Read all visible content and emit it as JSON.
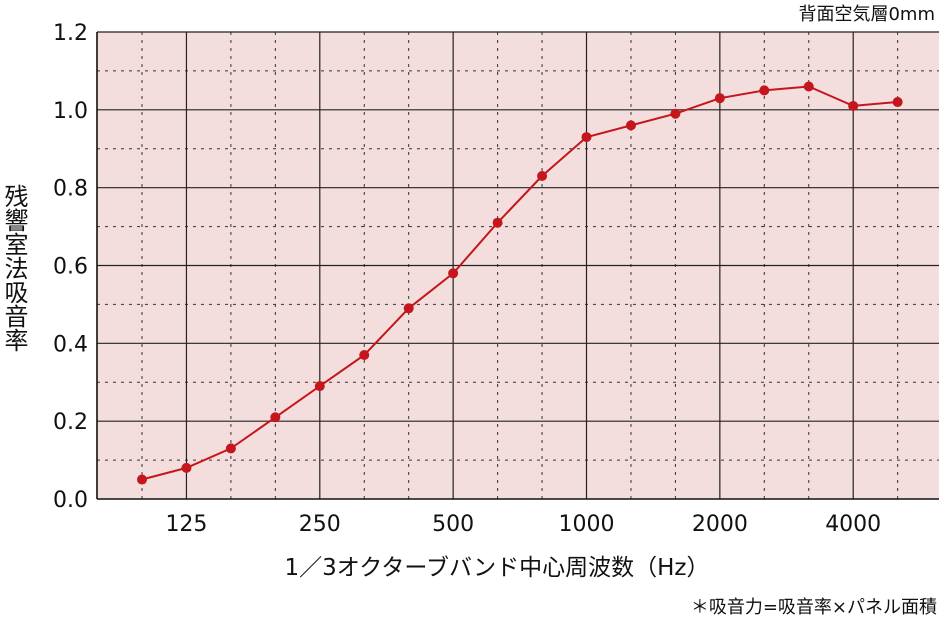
{
  "chart_data": {
    "type": "line",
    "title": "",
    "note_top_right": "背面空気層0mm",
    "xlabel": "1／3オクターブバンド中心周波数（Hz）",
    "ylabel": "残響室法吸音率",
    "footnote": "＊吸音力=吸音率×パネル面積",
    "x_tick_labels": [
      "125",
      "250",
      "500",
      "1000",
      "2000",
      "4000"
    ],
    "x_bands": [
      "100",
      "125",
      "160",
      "200",
      "250",
      "315",
      "400",
      "500",
      "630",
      "800",
      "1000",
      "1250",
      "1600",
      "2000",
      "2500",
      "3150",
      "4000",
      "5000"
    ],
    "ylim": [
      0.0,
      1.2
    ],
    "y_ticks": [
      "0.0",
      "0.2",
      "0.4",
      "0.6",
      "0.8",
      "1.0",
      "1.2"
    ],
    "grid": true,
    "series": [
      {
        "color": "#c4161c",
        "values": [
          0.05,
          0.08,
          0.13,
          0.21,
          0.29,
          0.37,
          0.49,
          0.58,
          0.71,
          0.83,
          0.93,
          0.96,
          0.99,
          1.03,
          1.05,
          1.06,
          1.01,
          1.02
        ]
      }
    ]
  },
  "colors": {
    "plot_background": "#f4dedd",
    "major_grid": "#222222",
    "minor_grid": "#333333",
    "line": "#c4161c"
  }
}
